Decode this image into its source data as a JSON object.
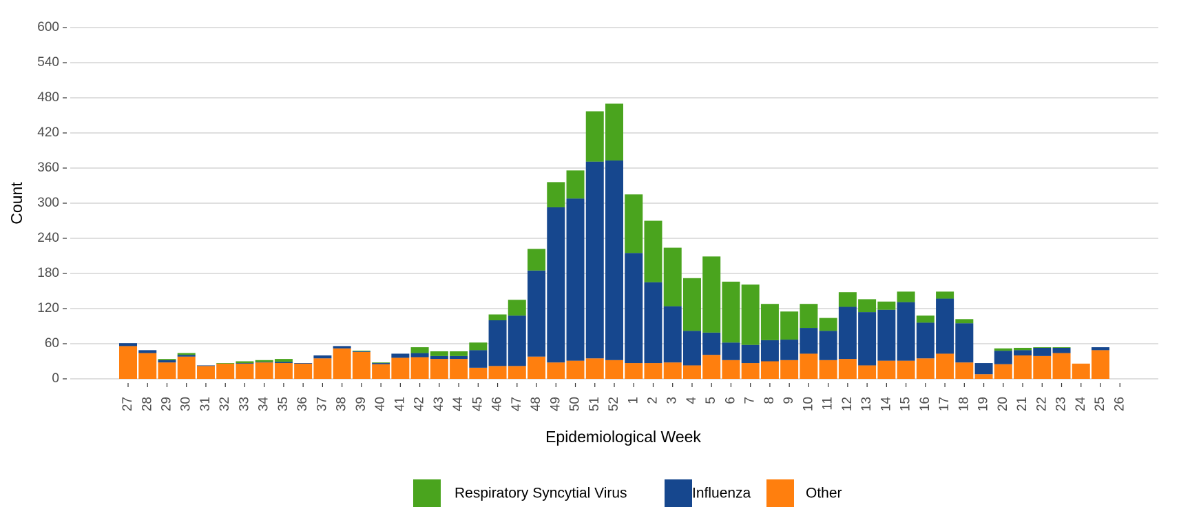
{
  "chart_data": {
    "type": "stacked-bar",
    "x_label": "Epidemiological Week",
    "y_label": "Count",
    "categories": [
      "27",
      "28",
      "29",
      "30",
      "31",
      "32",
      "33",
      "34",
      "35",
      "36",
      "37",
      "38",
      "39",
      "40",
      "41",
      "42",
      "43",
      "44",
      "45",
      "46",
      "47",
      "48",
      "49",
      "50",
      "51",
      "52",
      "1",
      "2",
      "3",
      "4",
      "5",
      "6",
      "7",
      "8",
      "9",
      "10",
      "11",
      "12",
      "13",
      "14",
      "15",
      "16",
      "17",
      "18",
      "19",
      "20",
      "21",
      "22",
      "23",
      "24",
      "25",
      "26"
    ],
    "series": [
      {
        "name": "Respiratory Syncytial Virus",
        "color": "#4aa41e",
        "values": [
          0,
          0,
          2,
          3,
          0,
          1,
          3,
          3,
          5,
          0,
          0,
          0,
          1,
          1,
          0,
          10,
          8,
          8,
          13,
          10,
          27,
          37,
          43,
          48,
          86,
          97,
          100,
          105,
          100,
          90,
          130,
          104,
          103,
          62,
          48,
          41,
          22,
          25,
          22,
          14,
          18,
          12,
          12,
          7,
          0,
          4,
          4,
          1,
          1,
          0,
          0,
          null
        ]
      },
      {
        "name": "Influenza",
        "color": "#16478e",
        "values": [
          5,
          5,
          4,
          3,
          1,
          0,
          1,
          1,
          2,
          1,
          5,
          4,
          1,
          2,
          7,
          7,
          5,
          5,
          30,
          78,
          86,
          147,
          265,
          277,
          336,
          341,
          188,
          138,
          96,
          59,
          38,
          30,
          31,
          36,
          35,
          44,
          50,
          89,
          91,
          87,
          100,
          61,
          94,
          67,
          19,
          23,
          9,
          14,
          9,
          0,
          5,
          null
        ]
      },
      {
        "name": "Other",
        "color": "#ff7f0e",
        "values": [
          56,
          44,
          28,
          38,
          22,
          26,
          26,
          28,
          27,
          26,
          35,
          52,
          46,
          25,
          36,
          37,
          34,
          34,
          19,
          22,
          22,
          38,
          28,
          31,
          35,
          32,
          27,
          27,
          28,
          23,
          41,
          32,
          27,
          30,
          32,
          43,
          32,
          34,
          23,
          31,
          31,
          35,
          43,
          28,
          8,
          25,
          40,
          39,
          44,
          26,
          49,
          null
        ]
      }
    ],
    "ylim": [
      0,
      600
    ],
    "yticks": [
      0,
      60,
      120,
      180,
      240,
      300,
      360,
      420,
      480,
      540,
      600
    ],
    "grid": true,
    "legend": "bottom"
  }
}
